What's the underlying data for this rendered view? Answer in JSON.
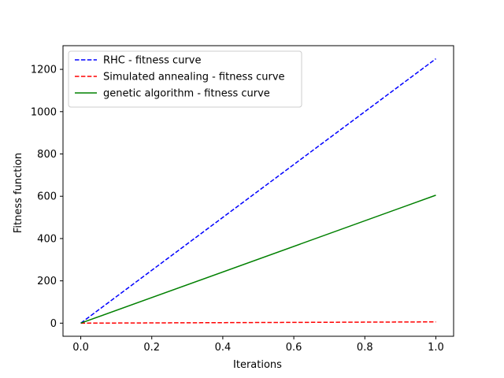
{
  "chart_data": {
    "type": "line",
    "title": "",
    "xlabel": "Iterations",
    "ylabel": "Fitness function",
    "xlim": [
      -0.05,
      1.05
    ],
    "ylim": [
      -62,
      1312
    ],
    "xticks": [
      0.0,
      0.2,
      0.4,
      0.6,
      0.8,
      1.0
    ],
    "xtick_labels": [
      "0.0",
      "0.2",
      "0.4",
      "0.6",
      "0.8",
      "1.0"
    ],
    "yticks": [
      0,
      200,
      400,
      600,
      800,
      1000,
      1200
    ],
    "ytick_labels": [
      "0",
      "200",
      "400",
      "600",
      "800",
      "1000",
      "1200"
    ],
    "grid": false,
    "legend_position": "top-left",
    "series": [
      {
        "name": "RHC - fitness curve",
        "x": [
          0.0,
          1.0
        ],
        "y": [
          0,
          1250
        ],
        "color": "#0000ff",
        "linestyle": "dashed"
      },
      {
        "name": "Simulated annealing - fitness curve",
        "x": [
          0.0,
          1.0
        ],
        "y": [
          0,
          6
        ],
        "color": "#ff0000",
        "linestyle": "dashed"
      },
      {
        "name": "genetic algorithm - fitness curve",
        "x": [
          0.0,
          1.0
        ],
        "y": [
          0,
          605
        ],
        "color": "#008000",
        "linestyle": "solid"
      }
    ]
  }
}
